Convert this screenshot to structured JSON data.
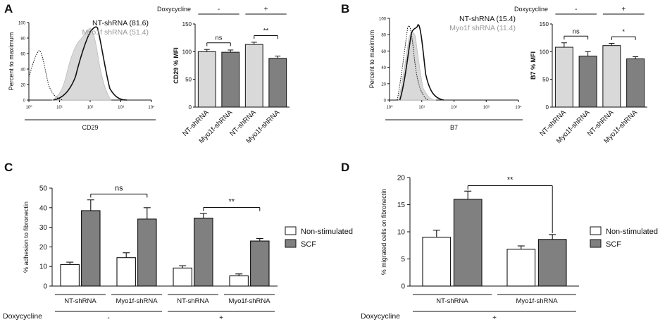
{
  "colors": {
    "light_gray": "#d9d9d9",
    "dark_gray": "#808080",
    "white": "#ffffff",
    "black": "#111111",
    "gray_text": "#9a9a9a"
  },
  "chart_data": [
    {
      "type": "histogram",
      "panel": "A",
      "xlabel": "CD29",
      "ylabel": "Percent to maximum",
      "xticks": [
        "10⁰",
        "10¹",
        "10²",
        "10³",
        "10⁴"
      ],
      "yticks": [
        "0",
        "20",
        "40",
        "60",
        "80",
        "100"
      ],
      "legend": [
        {
          "label": "NT-shRNA",
          "value": "(81.6)",
          "color": "#111111"
        },
        {
          "label": "Myo1f shRNA",
          "value": "(51.4)",
          "color": "#9a9a9a"
        }
      ]
    },
    {
      "type": "bar",
      "panel": "A",
      "ylabel": "CD29 % MFI",
      "ylim": [
        0,
        150
      ],
      "yticks": [
        "0",
        "50",
        "100",
        "150"
      ],
      "categories": [
        "NT-shRNA",
        "Myo1f-shRNA",
        "NT-shRNA",
        "Myo1f-shRNA"
      ],
      "values": [
        100,
        99,
        113,
        88
      ],
      "errors": [
        4,
        4,
        4,
        4
      ],
      "bar_colors": [
        "#d9d9d9",
        "#808080",
        "#d9d9d9",
        "#808080"
      ],
      "doxycycline_label": "Doxycycline",
      "doxy_groups": [
        "-",
        "+"
      ],
      "significance": [
        {
          "label": "ns",
          "from": 0,
          "to": 1
        },
        {
          "label": "**",
          "from": 2,
          "to": 3
        }
      ]
    },
    {
      "type": "histogram",
      "panel": "B",
      "xlabel": "B7",
      "ylabel": "Percent to maximum",
      "xticks": [
        "10⁰",
        "10¹",
        "10²",
        "10³",
        "10⁴"
      ],
      "yticks": [
        "0",
        "20",
        "40",
        "60",
        "80",
        "100"
      ],
      "legend": [
        {
          "label": "NT-shRNA",
          "value": "(15.4)",
          "color": "#111111"
        },
        {
          "label": "Myo1f shRNA",
          "value": "(11.4)",
          "color": "#9a9a9a"
        }
      ]
    },
    {
      "type": "bar",
      "panel": "B",
      "ylabel": "B7 % MFI",
      "ylim": [
        0,
        150
      ],
      "yticks": [
        "0",
        "50",
        "100",
        "150"
      ],
      "categories": [
        "NT-shRNA",
        "Myo1f-shRNA",
        "NT-shRNA",
        "Myo1f-shRNA"
      ],
      "values": [
        108,
        92,
        111,
        87
      ],
      "errors": [
        8,
        8,
        4,
        4
      ],
      "bar_colors": [
        "#d9d9d9",
        "#808080",
        "#d9d9d9",
        "#808080"
      ],
      "doxycycline_label": "Doxycycline",
      "doxy_groups": [
        "-",
        "+"
      ],
      "significance": [
        {
          "label": "ns",
          "from": 0,
          "to": 1
        },
        {
          "label": "*",
          "from": 2,
          "to": 3
        }
      ]
    },
    {
      "type": "bar",
      "panel": "C",
      "ylabel": "% adhesion to fibronectin",
      "ylim": [
        0,
        50
      ],
      "yticks": [
        "0",
        "10",
        "20",
        "30",
        "40",
        "50"
      ],
      "groups": [
        "NT-shRNA",
        "Myo1f-shRNA",
        "NT-shRNA",
        "Myo1f-shRNA"
      ],
      "series": [
        {
          "name": "Non-stimulated",
          "color": "#ffffff",
          "values": [
            11,
            14.5,
            9.2,
            5.2
          ],
          "errors": [
            1.2,
            2.5,
            1.2,
            1.0
          ]
        },
        {
          "name": "SCF",
          "color": "#808080",
          "values": [
            38.5,
            34.2,
            34.7,
            23.0
          ],
          "errors": [
            5.5,
            5.8,
            2.4,
            1.3
          ]
        }
      ],
      "doxycycline_label": "Doxycycline",
      "doxy_groups": [
        "-",
        "+"
      ],
      "significance": [
        {
          "label": "ns",
          "from_group": 0,
          "to_group": 1
        },
        {
          "label": "**",
          "from_group": 2,
          "to_group": 3
        }
      ]
    },
    {
      "type": "bar",
      "panel": "D",
      "ylabel": "% migrated cells on fibronectin",
      "ylim": [
        0,
        20
      ],
      "yticks": [
        "0",
        "5",
        "10",
        "15",
        "20"
      ],
      "groups": [
        "NT-shRNA",
        "Myo1f-shRNA"
      ],
      "series": [
        {
          "name": "Non-stimulated",
          "color": "#ffffff",
          "values": [
            9.0,
            6.8
          ],
          "errors": [
            1.3,
            0.6
          ]
        },
        {
          "name": "SCF",
          "color": "#808080",
          "values": [
            16.0,
            8.6
          ],
          "errors": [
            1.5,
            0.9
          ]
        }
      ],
      "doxycycline_label": "Doxycycline",
      "doxy_groups": [
        "+"
      ],
      "significance": [
        {
          "label": "**",
          "from_group": 0,
          "to_group": 1
        }
      ]
    }
  ],
  "panels": {
    "A": "A",
    "B": "B",
    "C": "C",
    "D": "D"
  }
}
